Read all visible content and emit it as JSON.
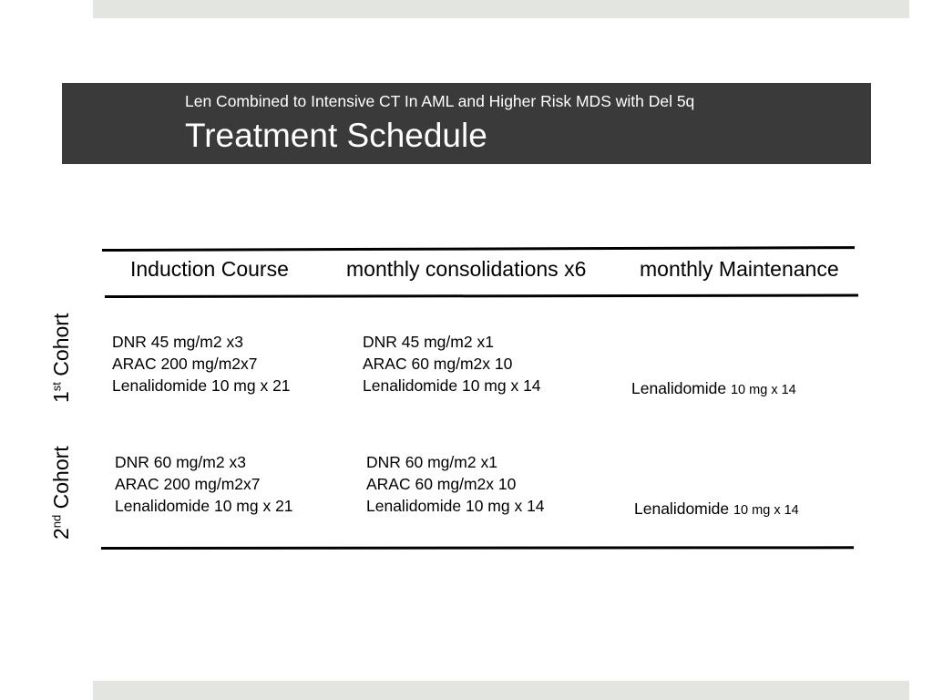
{
  "header": {
    "subtitle": "Len Combined to Intensive CT In AML and Higher Risk MDS with Del 5q",
    "title": "Treatment Schedule"
  },
  "table": {
    "columns": [
      "Induction Course",
      "monthly consolidations x6",
      "monthly Maintenance"
    ],
    "cohorts": [
      {
        "label_num": "1",
        "label_sup": "st",
        "label_text": " Cohort",
        "induction": [
          "DNR 45 mg/m2 x3",
          "ARAC 200 mg/m2x7",
          "Lenalidomide 10 mg x 21"
        ],
        "consolidation": [
          "DNR 45 mg/m2 x1",
          "ARAC 60 mg/m2x 10",
          "Lenalidomide 10 mg x 14"
        ],
        "maintenance_drug": "Lenalidomide",
        "maintenance_dose": "10 mg x 14"
      },
      {
        "label_num": "2",
        "label_sup": "nd",
        "label_text": " Cohort",
        "induction": [
          "DNR 60 mg/m2 x3",
          "ARAC 200 mg/m2x7",
          "Lenalidomide 10 mg x 21"
        ],
        "consolidation": [
          "DNR 60 mg/m2 x1",
          "ARAC 60 mg/m2x 10",
          "Lenalidomide 10 mg x 14"
        ],
        "maintenance_drug": "Lenalidomide",
        "maintenance_dose": "10 mg x 14"
      }
    ]
  }
}
